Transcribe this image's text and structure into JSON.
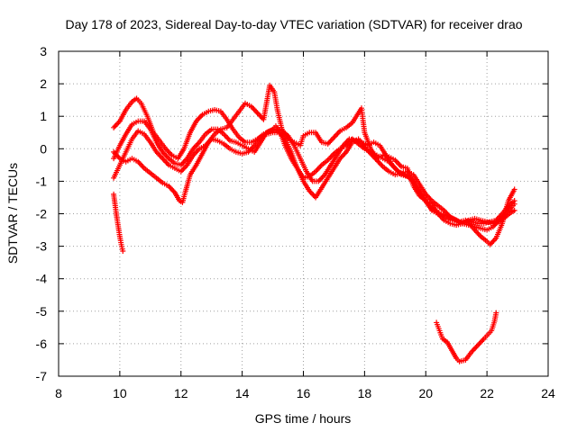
{
  "chart_data": {
    "type": "scatter",
    "title": "Day 178 of 2023, Sidereal Day-to-day VTEC variation (SDTVAR) for receiver drao",
    "xlabel": "GPS time / hours",
    "ylabel": "SDTVAR / TECUs",
    "xlim": [
      8,
      24
    ],
    "ylim": [
      -7,
      3
    ],
    "xticks": [
      "8",
      "10",
      "12",
      "14",
      "16",
      "18",
      "20",
      "22",
      "24"
    ],
    "yticks": [
      "3",
      "2",
      "1",
      "0",
      "-1",
      "-2",
      "-3",
      "-4",
      "-5",
      "-6",
      "-7"
    ],
    "grid": true,
    "marker": "+",
    "color": "#ff0000",
    "series": [
      {
        "name": "trace-1",
        "points": [
          [
            9.8,
            0.65
          ],
          [
            10.0,
            0.85
          ],
          [
            10.2,
            1.2
          ],
          [
            10.4,
            1.45
          ],
          [
            10.55,
            1.55
          ],
          [
            10.7,
            1.4
          ],
          [
            10.9,
            1.0
          ],
          [
            11.1,
            0.5
          ],
          [
            11.3,
            0.25
          ],
          [
            11.5,
            0.0
          ],
          [
            11.7,
            -0.2
          ],
          [
            11.9,
            -0.3
          ],
          [
            12.1,
            0.0
          ],
          [
            12.3,
            0.5
          ],
          [
            12.5,
            0.85
          ],
          [
            12.7,
            1.05
          ],
          [
            12.9,
            1.15
          ],
          [
            13.1,
            1.2
          ],
          [
            13.3,
            1.15
          ],
          [
            13.5,
            0.9
          ],
          [
            13.7,
            0.6
          ],
          [
            13.9,
            0.35
          ],
          [
            14.1,
            0.2
          ],
          [
            14.3,
            0.2
          ],
          [
            14.5,
            0.3
          ],
          [
            14.7,
            0.45
          ],
          [
            14.9,
            0.55
          ],
          [
            15.1,
            0.6
          ],
          [
            15.3,
            0.55
          ],
          [
            15.5,
            0.4
          ],
          [
            15.7,
            0.1
          ],
          [
            15.9,
            -0.3
          ],
          [
            16.1,
            -0.7
          ],
          [
            16.3,
            -1.0
          ],
          [
            16.5,
            -1.0
          ],
          [
            16.7,
            -0.8
          ],
          [
            16.9,
            -0.5
          ],
          [
            17.1,
            -0.2
          ],
          [
            17.3,
            0.1
          ],
          [
            17.5,
            0.3
          ],
          [
            17.7,
            0.25
          ],
          [
            17.9,
            0.2
          ],
          [
            18.1,
            0.1
          ],
          [
            18.3,
            0.2
          ],
          [
            18.5,
            0.1
          ],
          [
            18.7,
            -0.2
          ],
          [
            18.9,
            -0.5
          ],
          [
            19.1,
            -0.7
          ],
          [
            19.3,
            -0.8
          ],
          [
            19.5,
            -0.9
          ],
          [
            19.7,
            -1.2
          ],
          [
            19.9,
            -1.5
          ],
          [
            20.1,
            -1.75
          ],
          [
            20.3,
            -1.9
          ],
          [
            20.5,
            -2.0
          ],
          [
            20.7,
            -2.05
          ],
          [
            20.9,
            -2.15
          ],
          [
            21.1,
            -2.25
          ],
          [
            21.3,
            -2.2
          ],
          [
            21.5,
            -2.25
          ],
          [
            21.7,
            -2.3
          ],
          [
            21.9,
            -2.3
          ],
          [
            22.1,
            -2.25
          ],
          [
            22.3,
            -2.2
          ],
          [
            22.5,
            -2.0
          ],
          [
            22.7,
            -1.75
          ],
          [
            22.9,
            -1.6
          ]
        ]
      },
      {
        "name": "trace-2",
        "points": [
          [
            9.8,
            -0.3
          ],
          [
            10.0,
            0.1
          ],
          [
            10.2,
            0.45
          ],
          [
            10.4,
            0.75
          ],
          [
            10.6,
            0.85
          ],
          [
            10.8,
            0.85
          ],
          [
            11.0,
            0.6
          ],
          [
            11.2,
            0.2
          ],
          [
            11.4,
            -0.1
          ],
          [
            11.6,
            -0.3
          ],
          [
            11.8,
            -0.45
          ],
          [
            12.0,
            -0.5
          ],
          [
            12.2,
            -0.3
          ],
          [
            12.4,
            0.0
          ],
          [
            12.6,
            0.2
          ],
          [
            12.8,
            0.45
          ],
          [
            13.0,
            0.6
          ],
          [
            13.2,
            0.6
          ],
          [
            13.4,
            0.45
          ],
          [
            13.6,
            0.25
          ],
          [
            13.8,
            0.2
          ],
          [
            14.0,
            0.1
          ],
          [
            14.2,
            0.0
          ],
          [
            14.4,
            -0.1
          ],
          [
            14.6,
            0.2
          ],
          [
            14.8,
            0.5
          ],
          [
            15.0,
            0.6
          ],
          [
            15.1,
            0.7
          ],
          [
            15.25,
            0.5
          ],
          [
            15.4,
            0.1
          ],
          [
            15.6,
            -0.3
          ],
          [
            15.8,
            -0.6
          ],
          [
            16.0,
            -0.9
          ],
          [
            16.2,
            -0.85
          ],
          [
            16.4,
            -0.7
          ],
          [
            16.6,
            -0.5
          ],
          [
            16.8,
            -0.35
          ],
          [
            17.0,
            -0.15
          ],
          [
            17.2,
            0.0
          ],
          [
            17.4,
            0.1
          ],
          [
            17.6,
            0.3
          ],
          [
            17.8,
            0.15
          ],
          [
            18.0,
            0.0
          ],
          [
            18.2,
            -0.1
          ],
          [
            18.4,
            -0.2
          ],
          [
            18.6,
            -0.3
          ],
          [
            18.8,
            -0.4
          ],
          [
            19.0,
            -0.6
          ],
          [
            19.2,
            -0.8
          ],
          [
            19.4,
            -0.85
          ],
          [
            19.6,
            -1.0
          ],
          [
            19.8,
            -1.3
          ],
          [
            20.0,
            -1.6
          ],
          [
            20.2,
            -1.9
          ],
          [
            20.4,
            -2.0
          ],
          [
            20.6,
            -2.1
          ],
          [
            20.8,
            -2.2
          ],
          [
            21.0,
            -2.2
          ],
          [
            21.2,
            -2.3
          ],
          [
            21.4,
            -2.2
          ],
          [
            21.6,
            -2.15
          ],
          [
            21.8,
            -2.2
          ],
          [
            22.0,
            -2.25
          ],
          [
            22.2,
            -2.3
          ],
          [
            22.4,
            -2.25
          ],
          [
            22.6,
            -2.1
          ],
          [
            22.8,
            -1.95
          ],
          [
            22.9,
            -1.9
          ]
        ]
      },
      {
        "name": "trace-3",
        "points": [
          [
            9.8,
            -0.9
          ],
          [
            10.0,
            -0.5
          ],
          [
            10.2,
            -0.1
          ],
          [
            10.4,
            0.3
          ],
          [
            10.6,
            0.55
          ],
          [
            10.8,
            0.45
          ],
          [
            11.0,
            0.2
          ],
          [
            11.2,
            -0.1
          ],
          [
            11.4,
            -0.3
          ],
          [
            11.6,
            -0.5
          ],
          [
            11.8,
            -0.6
          ],
          [
            12.0,
            -0.7
          ],
          [
            12.2,
            -0.5
          ],
          [
            12.4,
            -0.2
          ],
          [
            12.6,
            0.0
          ],
          [
            12.8,
            0.1
          ],
          [
            13.0,
            0.3
          ],
          [
            13.2,
            0.25
          ],
          [
            13.4,
            0.15
          ],
          [
            13.6,
            0.0
          ],
          [
            13.8,
            -0.1
          ],
          [
            14.0,
            -0.15
          ],
          [
            14.2,
            -0.1
          ],
          [
            14.4,
            0.1
          ],
          [
            14.6,
            0.35
          ],
          [
            14.8,
            0.45
          ],
          [
            15.0,
            0.5
          ],
          [
            15.2,
            0.5
          ],
          [
            15.4,
            0.3
          ],
          [
            15.6,
            -0.1
          ],
          [
            15.8,
            -0.6
          ],
          [
            16.0,
            -1.0
          ],
          [
            16.2,
            -1.3
          ],
          [
            16.4,
            -1.5
          ],
          [
            16.6,
            -1.2
          ],
          [
            16.8,
            -0.9
          ],
          [
            17.0,
            -0.6
          ],
          [
            17.2,
            -0.3
          ],
          [
            17.4,
            -0.1
          ],
          [
            17.6,
            0.2
          ],
          [
            17.8,
            0.3
          ],
          [
            17.9,
            0.2
          ],
          [
            18.0,
            0.05
          ],
          [
            18.2,
            -0.15
          ],
          [
            18.4,
            -0.35
          ],
          [
            18.6,
            -0.55
          ],
          [
            18.8,
            -0.7
          ],
          [
            19.0,
            -0.8
          ],
          [
            19.2,
            -0.75
          ],
          [
            19.4,
            -0.7
          ],
          [
            19.6,
            -0.8
          ],
          [
            19.8,
            -1.1
          ],
          [
            20.0,
            -1.4
          ],
          [
            20.2,
            -1.6
          ],
          [
            20.4,
            -1.75
          ],
          [
            20.6,
            -1.9
          ],
          [
            20.8,
            -2.1
          ],
          [
            21.0,
            -2.2
          ],
          [
            21.2,
            -2.3
          ],
          [
            21.4,
            -2.35
          ],
          [
            21.6,
            -2.4
          ],
          [
            21.8,
            -2.45
          ],
          [
            22.0,
            -2.5
          ],
          [
            22.2,
            -2.4
          ],
          [
            22.4,
            -2.2
          ],
          [
            22.6,
            -2.0
          ],
          [
            22.8,
            -1.8
          ],
          [
            22.9,
            -1.7
          ]
        ]
      },
      {
        "name": "trace-4",
        "points": [
          [
            9.8,
            -0.1
          ],
          [
            10.0,
            -0.3
          ],
          [
            10.2,
            -0.4
          ],
          [
            10.4,
            -0.3
          ],
          [
            10.6,
            -0.4
          ],
          [
            10.8,
            -0.6
          ],
          [
            11.0,
            -0.75
          ],
          [
            11.2,
            -0.9
          ],
          [
            11.4,
            -1.05
          ],
          [
            11.6,
            -1.15
          ],
          [
            11.8,
            -1.35
          ],
          [
            11.95,
            -1.6
          ],
          [
            12.05,
            -1.65
          ],
          [
            12.15,
            -1.3
          ],
          [
            12.3,
            -0.8
          ],
          [
            12.5,
            -0.5
          ],
          [
            12.7,
            -0.15
          ],
          [
            12.9,
            0.2
          ],
          [
            13.1,
            0.45
          ],
          [
            13.3,
            0.6
          ],
          [
            13.5,
            0.65
          ],
          [
            13.7,
            0.9
          ],
          [
            13.9,
            1.15
          ],
          [
            14.1,
            1.4
          ],
          [
            14.3,
            1.3
          ],
          [
            14.5,
            1.1
          ],
          [
            14.7,
            0.9
          ],
          [
            14.9,
            1.95
          ],
          [
            15.05,
            1.75
          ],
          [
            15.15,
            1.2
          ],
          [
            15.3,
            0.6
          ],
          [
            15.5,
            0.3
          ],
          [
            15.7,
            0.2
          ],
          [
            15.9,
            0.1
          ],
          [
            16.0,
            0.4
          ],
          [
            16.2,
            0.5
          ],
          [
            16.4,
            0.5
          ],
          [
            16.6,
            0.2
          ],
          [
            16.8,
            0.15
          ],
          [
            17.0,
            0.35
          ],
          [
            17.2,
            0.55
          ],
          [
            17.4,
            0.65
          ],
          [
            17.6,
            0.8
          ],
          [
            17.8,
            1.1
          ],
          [
            17.9,
            1.25
          ],
          [
            18.0,
            0.5
          ],
          [
            18.2,
            0.0
          ],
          [
            18.4,
            -0.3
          ],
          [
            18.6,
            -0.2
          ],
          [
            18.8,
            -0.25
          ],
          [
            19.0,
            -0.35
          ],
          [
            19.2,
            -0.55
          ],
          [
            19.4,
            -0.6
          ],
          [
            19.6,
            -1.15
          ],
          [
            19.8,
            -1.45
          ],
          [
            20.0,
            -1.6
          ],
          [
            20.2,
            -1.7
          ],
          [
            20.4,
            -2.0
          ],
          [
            20.6,
            -2.2
          ],
          [
            20.8,
            -2.3
          ],
          [
            21.0,
            -2.35
          ],
          [
            21.2,
            -2.3
          ],
          [
            21.4,
            -2.25
          ],
          [
            21.6,
            -2.5
          ],
          [
            21.8,
            -2.7
          ],
          [
            22.0,
            -2.85
          ],
          [
            22.1,
            -2.95
          ],
          [
            22.3,
            -2.75
          ],
          [
            22.5,
            -2.3
          ],
          [
            22.7,
            -1.6
          ],
          [
            22.9,
            -1.25
          ]
        ]
      },
      {
        "name": "trace-5",
        "points": [
          [
            9.8,
            -1.4
          ],
          [
            9.85,
            -1.75
          ],
          [
            9.9,
            -2.1
          ],
          [
            9.95,
            -2.4
          ],
          [
            10.0,
            -2.7
          ],
          [
            10.05,
            -2.95
          ],
          [
            10.1,
            -3.15
          ]
        ]
      },
      {
        "name": "trace-6",
        "points": [
          [
            20.35,
            -5.35
          ],
          [
            20.45,
            -5.6
          ],
          [
            20.55,
            -5.85
          ],
          [
            20.7,
            -5.95
          ],
          [
            20.85,
            -6.2
          ],
          [
            21.0,
            -6.45
          ],
          [
            21.1,
            -6.55
          ],
          [
            21.3,
            -6.5
          ],
          [
            21.5,
            -6.25
          ],
          [
            21.7,
            -6.05
          ],
          [
            21.9,
            -5.85
          ],
          [
            22.05,
            -5.7
          ],
          [
            22.15,
            -5.6
          ],
          [
            22.25,
            -5.3
          ],
          [
            22.3,
            -5.05
          ]
        ]
      }
    ]
  }
}
